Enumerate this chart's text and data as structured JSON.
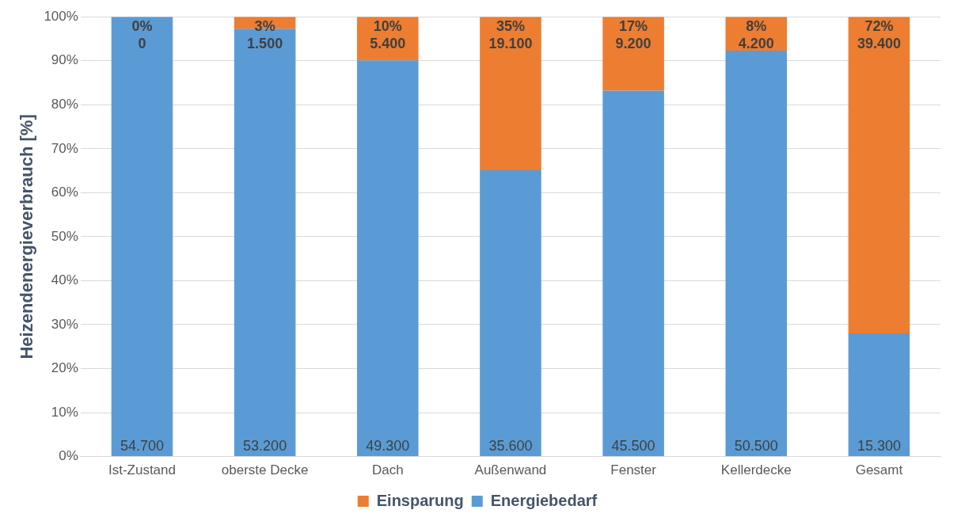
{
  "chart_data": {
    "type": "bar",
    "stacked": true,
    "ylabel": "Heizendenergieverbrauch [%]",
    "categories": [
      "Ist-Zustand",
      "oberste Decke",
      "Dach",
      "Außenwand",
      "Fenster",
      "Kellerdecke",
      "Gesamt"
    ],
    "series": [
      {
        "name": "Energiebedarf",
        "color": "#5b9bd5",
        "values": [
          100,
          97.3,
          90.1,
          65.1,
          83.2,
          92.3,
          28.0
        ]
      },
      {
        "name": "Einsparung",
        "color": "#ed7d31",
        "values": [
          0,
          2.7,
          9.9,
          34.9,
          16.8,
          7.7,
          72.0
        ],
        "value_labels": [
          "0%\n0",
          "3%\n1.500",
          "10%\n5.400",
          "35%\n19.100",
          "17%\n9.200",
          "8%\n4.200",
          "72%\n39.400"
        ]
      }
    ],
    "annotations": [
      {
        "text": "54.700",
        "x": "Ist-Zustand",
        "y": 0
      },
      {
        "text": "53.200",
        "x": "oberste Decke",
        "y": 0
      },
      {
        "text": "49.300",
        "x": "Dach",
        "y": 0
      },
      {
        "text": "35.600",
        "x": "Außenwand",
        "y": 0
      },
      {
        "text": "45.500",
        "x": "Fenster",
        "y": 0
      },
      {
        "text": "50.500",
        "x": "Kellerdecke",
        "y": 0
      },
      {
        "text": "15.300",
        "x": "Gesamt",
        "y": 0
      }
    ],
    "ylim": [
      0,
      100
    ],
    "yticks": [
      {
        "value": 0,
        "label": "0%"
      },
      {
        "value": 10,
        "label": "10%"
      },
      {
        "value": 20,
        "label": "20%"
      },
      {
        "value": 30,
        "label": "30%"
      },
      {
        "value": 40,
        "label": "40%"
      },
      {
        "value": 50,
        "label": "50%"
      },
      {
        "value": 60,
        "label": "60%"
      },
      {
        "value": 70,
        "label": "70%"
      },
      {
        "value": 80,
        "label": "80%"
      },
      {
        "value": 90,
        "label": "90%"
      },
      {
        "value": 100,
        "label": "100%"
      }
    ],
    "grid": "y",
    "legend": "bottom"
  }
}
